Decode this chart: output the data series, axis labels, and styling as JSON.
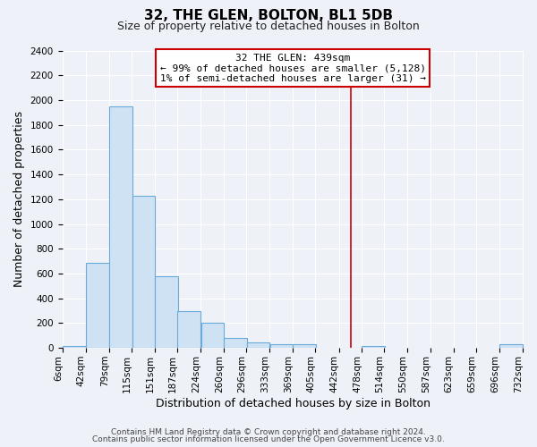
{
  "title": "32, THE GLEN, BOLTON, BL1 5DB",
  "subtitle": "Size of property relative to detached houses in Bolton",
  "xlabel": "Distribution of detached houses by size in Bolton",
  "ylabel": "Number of detached properties",
  "bar_color": "#cfe2f3",
  "bar_edge_color": "#6aaadb",
  "bar_left_edges": [
    6,
    42,
    79,
    115,
    151,
    187,
    224,
    260,
    296,
    333,
    369,
    405,
    442,
    478,
    514,
    550,
    587,
    623,
    659,
    696
  ],
  "bar_heights": [
    15,
    690,
    1950,
    1230,
    575,
    300,
    205,
    80,
    45,
    30,
    28,
    0,
    0,
    14,
    0,
    0,
    0,
    0,
    0,
    32
  ],
  "bin_width": 37,
  "tick_labels": [
    "6sqm",
    "42sqm",
    "79sqm",
    "115sqm",
    "151sqm",
    "187sqm",
    "224sqm",
    "260sqm",
    "296sqm",
    "333sqm",
    "369sqm",
    "405sqm",
    "442sqm",
    "478sqm",
    "514sqm",
    "550sqm",
    "587sqm",
    "623sqm",
    "659sqm",
    "696sqm",
    "732sqm"
  ],
  "vline_x": 442,
  "vline_color": "#cc0000",
  "ylim": [
    0,
    2400
  ],
  "yticks": [
    0,
    200,
    400,
    600,
    800,
    1000,
    1200,
    1400,
    1600,
    1800,
    2000,
    2200,
    2400
  ],
  "annotation_title": "32 THE GLEN: 439sqm",
  "annotation_line1": "← 99% of detached houses are smaller (5,128)",
  "annotation_line2": "1% of semi-detached houses are larger (31) →",
  "annotation_box_color": "#ffffff",
  "annotation_border_color": "#cc0000",
  "footer1": "Contains HM Land Registry data © Crown copyright and database right 2024.",
  "footer2": "Contains public sector information licensed under the Open Government Licence v3.0.",
  "bg_color": "#eef2f8",
  "grid_color": "#ffffff",
  "title_fontsize": 11,
  "subtitle_fontsize": 9,
  "axis_label_fontsize": 9,
  "tick_fontsize": 7.5,
  "footer_fontsize": 6.5
}
